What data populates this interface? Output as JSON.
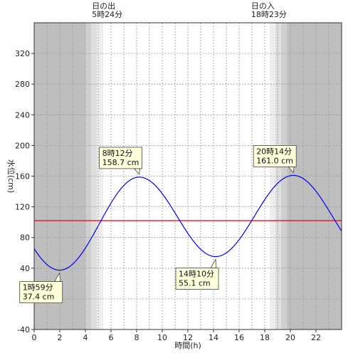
{
  "chart_data": {
    "type": "line",
    "xlabel": "時間(h)",
    "ylabel": "水位(cm)",
    "xlim": [
      0,
      24
    ],
    "ylim": [
      -40,
      360
    ],
    "x_ticks": [
      0,
      2,
      4,
      6,
      8,
      10,
      12,
      14,
      16,
      18,
      20,
      22
    ],
    "y_ticks": [
      -40,
      0,
      40,
      80,
      120,
      160,
      200,
      240,
      280,
      320
    ],
    "reference_level": 102,
    "sunrise": {
      "title": "日の出",
      "time": "5時24分",
      "hour": 5.4
    },
    "sunset": {
      "title": "日の入",
      "time": "18時23分",
      "hour": 18.383
    },
    "extrema": [
      {
        "time_label": "1時59分",
        "level_label": "37.4 cm",
        "hour": 1.983,
        "level": 37.4,
        "kind": "low"
      },
      {
        "time_label": "8時12分",
        "level_label": "158.7 cm",
        "hour": 8.2,
        "level": 158.7,
        "kind": "high"
      },
      {
        "time_label": "14時10分",
        "level_label": "55.1 cm",
        "hour": 14.167,
        "level": 55.1,
        "kind": "low"
      },
      {
        "time_label": "20時14分",
        "level_label": "161.0 cm",
        "hour": 20.233,
        "level": 161.0,
        "kind": "high"
      }
    ],
    "start_level": 67,
    "end_level": 84,
    "colors": {
      "curve": "#0000ee",
      "reference": "#ee0000",
      "night": "#bebebe",
      "day": "#ffffff"
    }
  }
}
